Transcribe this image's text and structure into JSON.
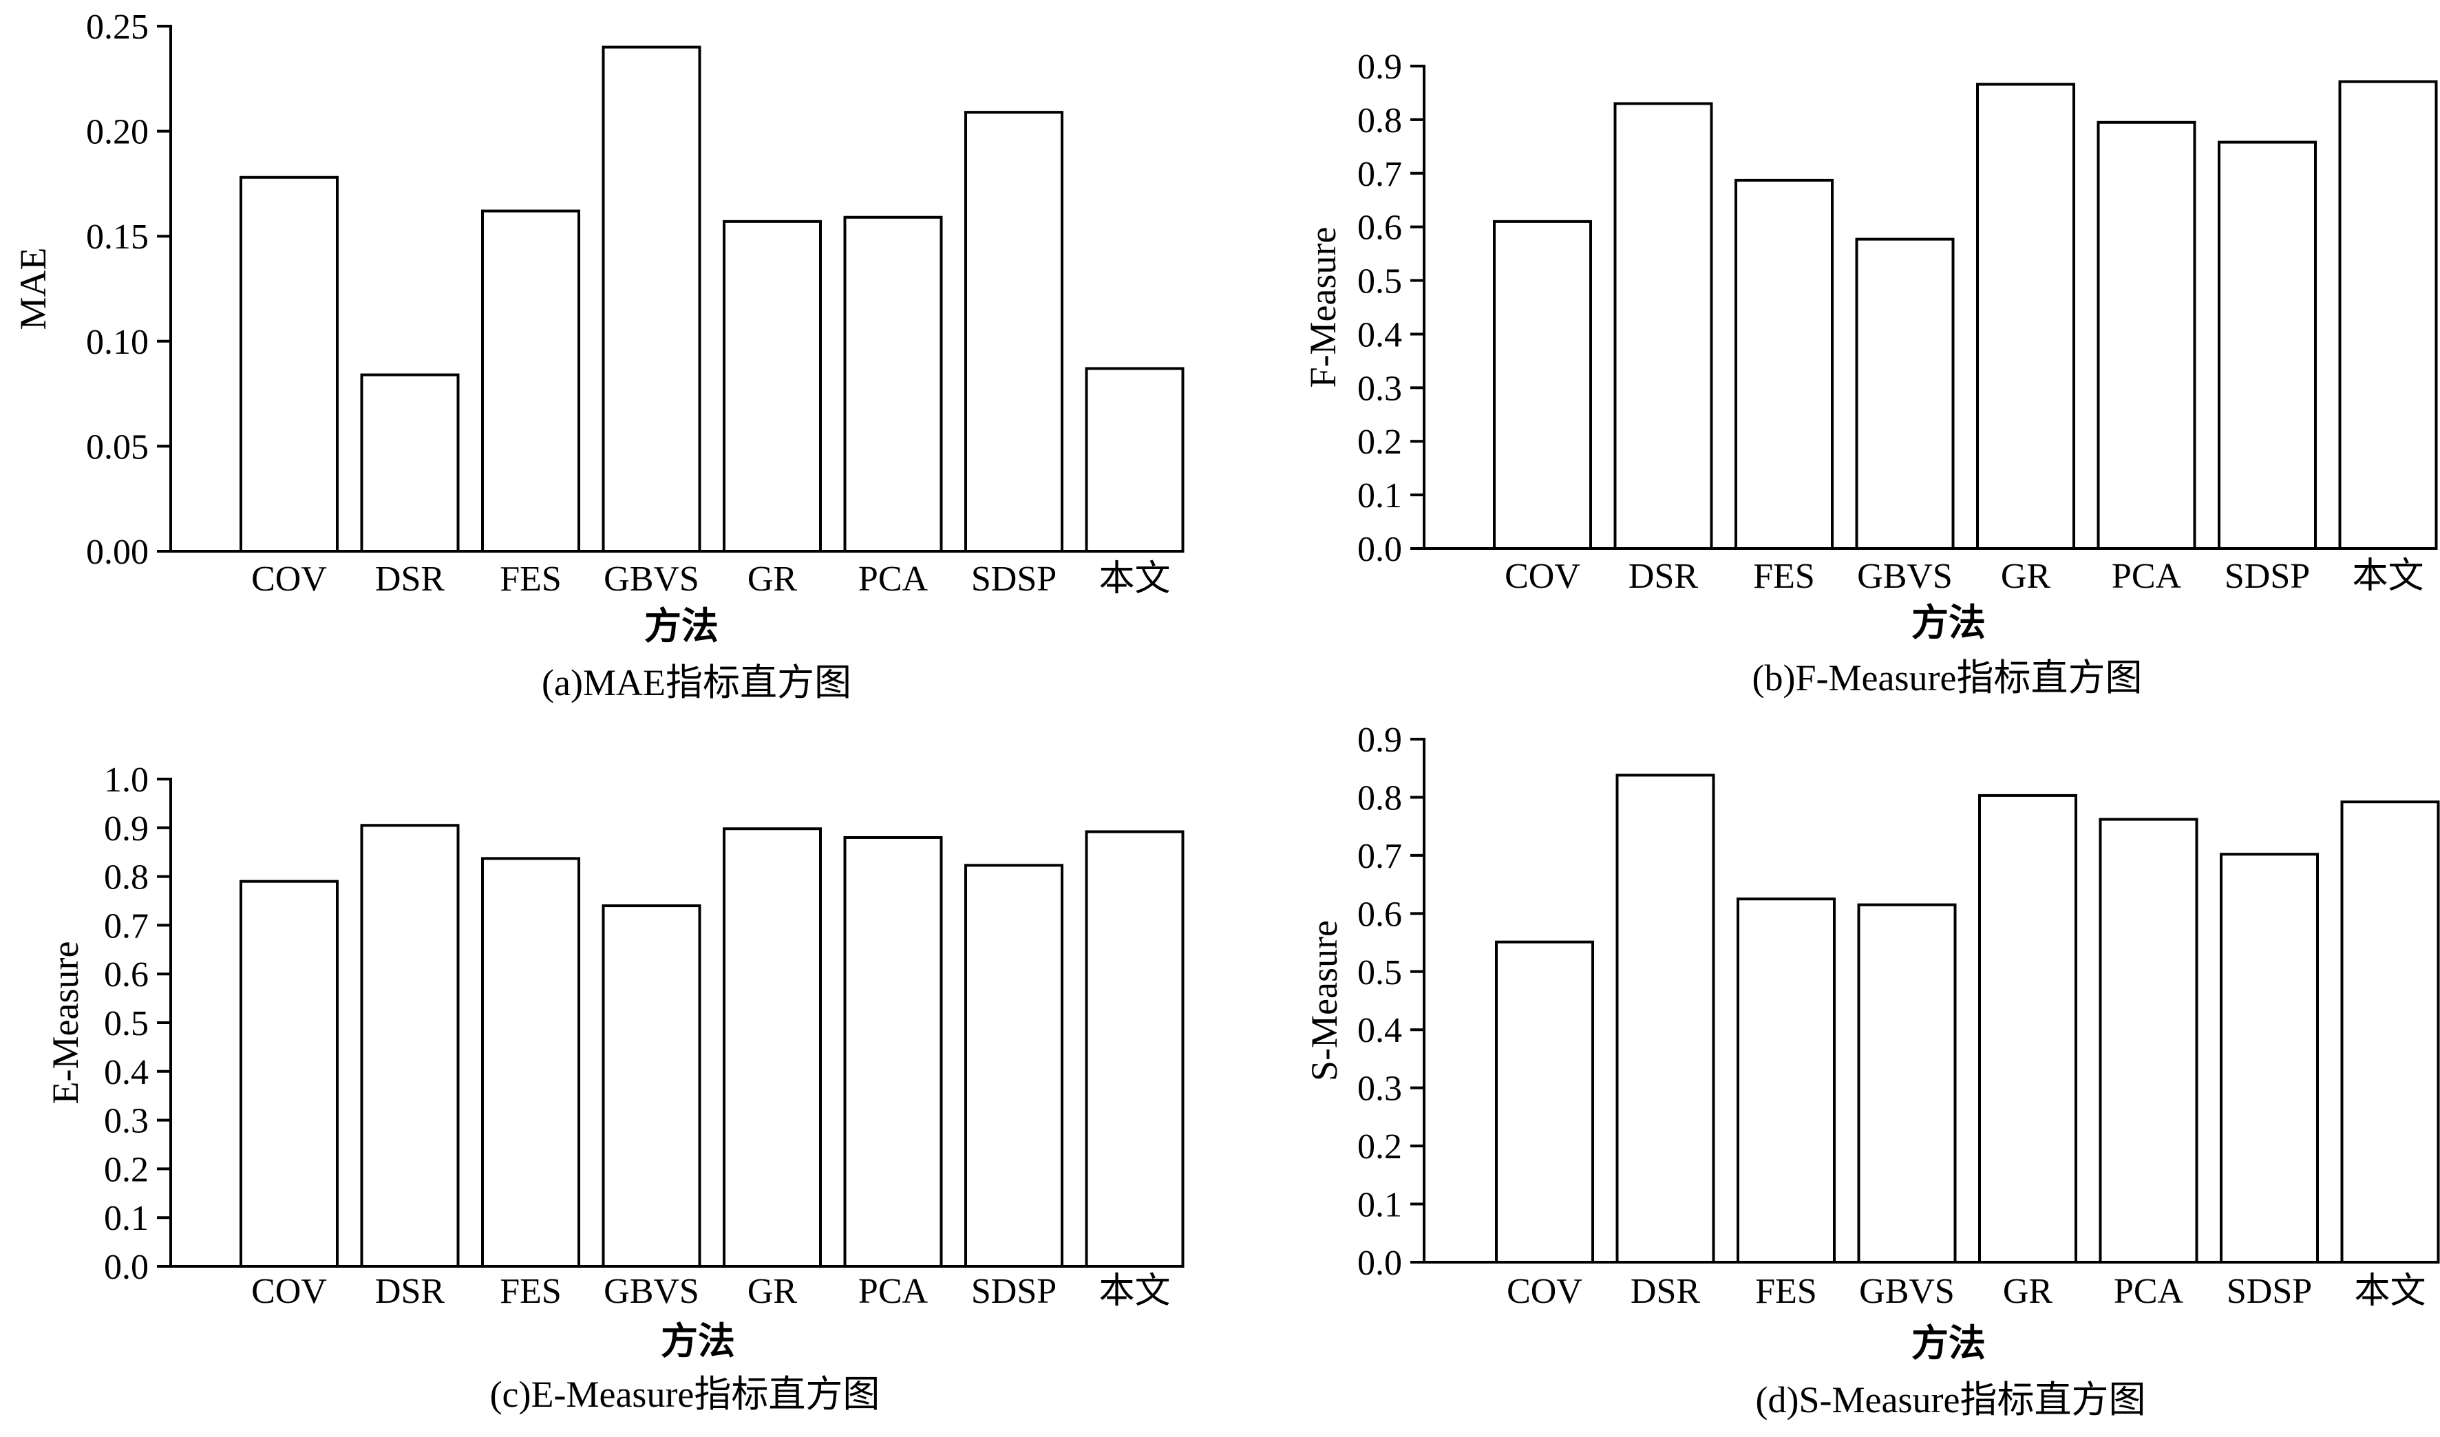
{
  "chart_data": [
    {
      "type": "bar",
      "categories": [
        "COV",
        "DSR",
        "FES",
        "GBVS",
        "GR",
        "PCA",
        "SDSP",
        "本文"
      ],
      "values": [
        0.178,
        0.084,
        0.162,
        0.24,
        0.157,
        0.159,
        0.209,
        0.087
      ],
      "yticks": [
        "0.00",
        "0.05",
        "0.10",
        "0.15",
        "0.20",
        "0.25"
      ],
      "ylim": [
        0,
        0.25
      ],
      "ylabel": "MAE",
      "xlabel": "方法",
      "caption": "(a)MAE指标直方图",
      "bar_fill": "#ffffff",
      "bar_stroke": "#000000"
    },
    {
      "type": "bar",
      "categories": [
        "COV",
        "DSR",
        "FES",
        "GBVS",
        "GR",
        "PCA",
        "SDSP",
        "本文"
      ],
      "values": [
        0.61,
        0.83,
        0.687,
        0.577,
        0.866,
        0.795,
        0.758,
        0.871
      ],
      "yticks": [
        "0.0",
        "0.1",
        "0.2",
        "0.3",
        "0.4",
        "0.5",
        "0.6",
        "0.7",
        "0.8",
        "0.9"
      ],
      "ylim": [
        0,
        0.9
      ],
      "ylabel": "F-Measure",
      "xlabel": "方法",
      "caption": "(b)F-Measure指标直方图",
      "bar_fill": "#ffffff",
      "bar_stroke": "#000000"
    },
    {
      "type": "bar",
      "categories": [
        "COV",
        "DSR",
        "FES",
        "GBVS",
        "GR",
        "PCA",
        "SDSP",
        "本文"
      ],
      "values": [
        0.79,
        0.905,
        0.837,
        0.74,
        0.898,
        0.88,
        0.823,
        0.892
      ],
      "yticks": [
        "0.0",
        "0.1",
        "0.2",
        "0.3",
        "0.4",
        "0.5",
        "0.6",
        "0.7",
        "0.8",
        "0.9",
        "1.0"
      ],
      "ylim": [
        0,
        1.0
      ],
      "ylabel": "E-Measure",
      "xlabel": "方法",
      "caption": "(c)E-Measure指标直方图",
      "bar_fill": "#ffffff",
      "bar_stroke": "#000000"
    },
    {
      "type": "bar",
      "categories": [
        "COV",
        "DSR",
        "FES",
        "GBVS",
        "GR",
        "PCA",
        "SDSP",
        "本文"
      ],
      "values": [
        0.551,
        0.838,
        0.625,
        0.615,
        0.803,
        0.762,
        0.702,
        0.792
      ],
      "yticks": [
        "0.0",
        "0.1",
        "0.2",
        "0.3",
        "0.4",
        "0.5",
        "0.6",
        "0.7",
        "0.8",
        "0.9"
      ],
      "ylim": [
        0,
        0.9
      ],
      "ylabel": "S-Measure",
      "xlabel": "方法",
      "caption": "(d)S-Measure指标直方图",
      "bar_fill": "#ffffff",
      "bar_stroke": "#000000"
    }
  ]
}
